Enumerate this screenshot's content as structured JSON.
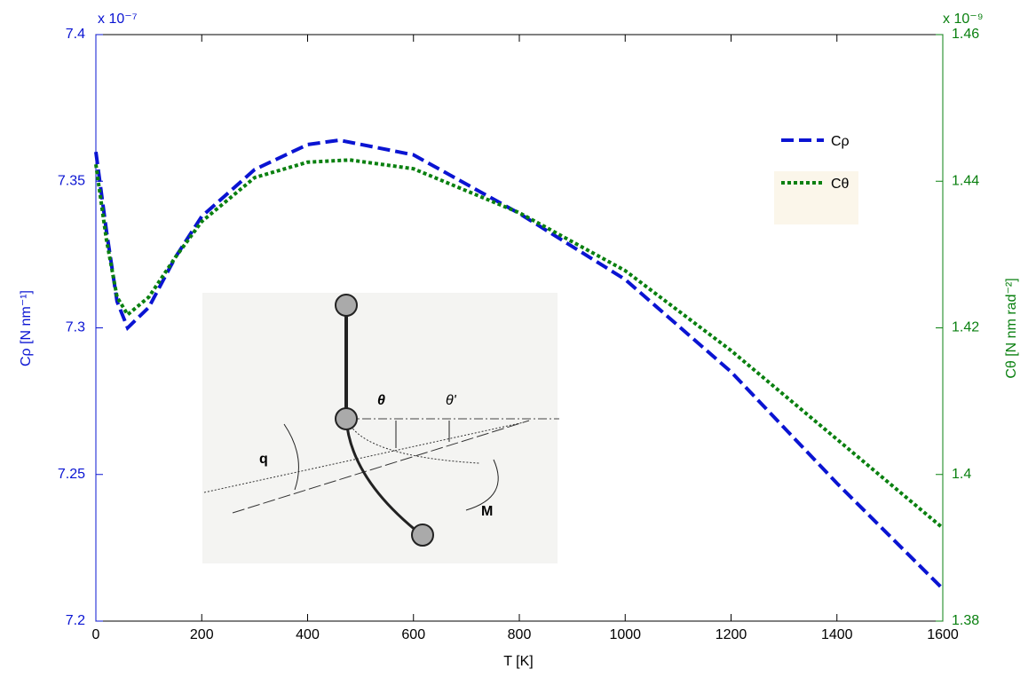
{
  "chart_data": {
    "type": "line",
    "xlabel": "T [K]",
    "ylabel": "Cρ [N nm⁻¹]",
    "y2label": "Cθ [N nm rad⁻²]",
    "y_multiplier": "x 10⁻⁷",
    "y2_multiplier": "x 10⁻⁹",
    "xlim": [
      0,
      1600
    ],
    "xticks": [
      0,
      200,
      400,
      600,
      800,
      1000,
      1200,
      1400,
      1600
    ],
    "ylim": [
      7.2,
      7.4
    ],
    "yticks": [
      7.2,
      7.25,
      7.3,
      7.35,
      7.4
    ],
    "y2lim": [
      1.38,
      1.46
    ],
    "y2ticks": [
      1.38,
      1.4,
      1.42,
      1.44,
      1.46
    ],
    "legend": "upper right",
    "series": [
      {
        "name": "Cρ",
        "color": "#0a14d2",
        "dash": "dashed",
        "x": [
          0,
          20,
          40,
          60,
          100,
          150,
          200,
          300,
          400,
          460,
          600,
          800,
          1000,
          1200,
          1400,
          1600
        ],
        "values": [
          7.36,
          7.333,
          7.309,
          7.3,
          7.307,
          7.324,
          7.338,
          7.354,
          7.3625,
          7.364,
          7.359,
          7.339,
          7.3165,
          7.285,
          7.247,
          7.211
        ]
      },
      {
        "name": "Cθ",
        "color": "#0a8010",
        "dash": "dotted",
        "axis": "y2",
        "x": [
          0,
          20,
          40,
          60,
          100,
          150,
          200,
          300,
          400,
          480,
          600,
          800,
          1000,
          1200,
          1400,
          1600
        ],
        "values": [
          1.4423,
          1.432,
          1.4242,
          1.4218,
          1.4242,
          1.4296,
          1.4345,
          1.4405,
          1.4426,
          1.4429,
          1.4417,
          1.4357,
          1.4278,
          1.4169,
          1.4048,
          1.3927
        ]
      }
    ]
  },
  "inset": {
    "labels": [
      "θ",
      "θ'",
      "q",
      "M"
    ]
  }
}
